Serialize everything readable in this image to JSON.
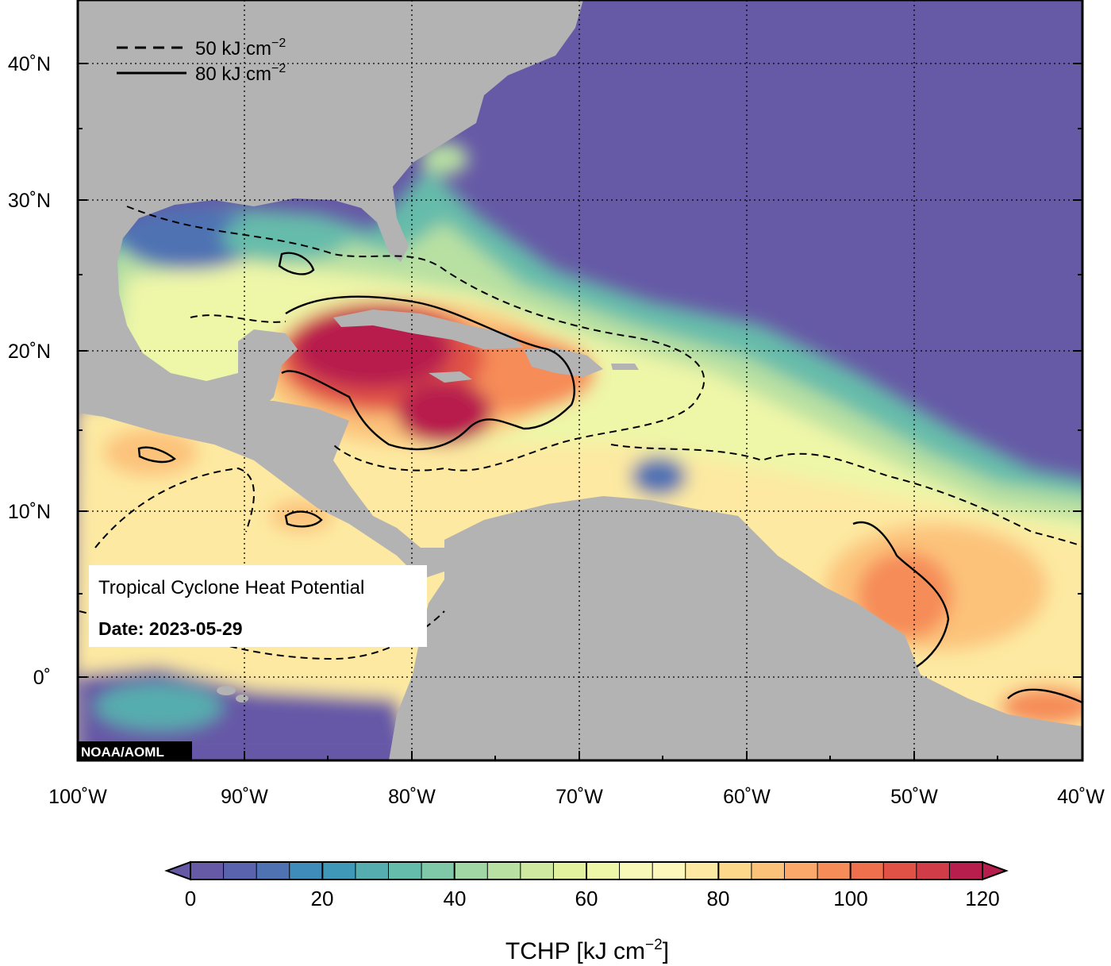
{
  "map": {
    "lat_labels": [
      "40˚N",
      "30˚N",
      "20˚N",
      "10˚N",
      "0˚"
    ],
    "lon_labels": [
      "100˚W",
      "90˚W",
      "80˚W",
      "70˚W",
      "60˚W",
      "50˚W",
      "40˚W"
    ],
    "title": "Tropical Cyclone Heat Potential",
    "date_label": "Date: 2023-05-29",
    "credit": "NOAA/AOML",
    "land_color": "#b3b3b3",
    "ocean_low_color": "#6659a6"
  },
  "legend": {
    "items": [
      {
        "value": "50 kJ cm",
        "sup": "−2",
        "style": "dashed"
      },
      {
        "value": "80 kJ cm",
        "sup": "−2",
        "style": "solid"
      }
    ]
  },
  "colorbar": {
    "ticks": [
      "0",
      "20",
      "40",
      "60",
      "80",
      "100",
      "120"
    ],
    "label_main": "TCHP [kJ cm",
    "label_sup": "−2",
    "label_end": "]",
    "min": 0,
    "max": 120,
    "step": 5,
    "colors": [
      "#6659a6",
      "#5a63ad",
      "#4f72b3",
      "#3f8cba",
      "#3f98b8",
      "#56adaf",
      "#66bcaa",
      "#7fc9a8",
      "#a0d7a4",
      "#b8e0a2",
      "#cfe9a0",
      "#e2f19d",
      "#eef6a8",
      "#f8f9b8",
      "#fef7bb",
      "#fde9a1",
      "#fdd88a",
      "#fcc27a",
      "#fba86a",
      "#f68c58",
      "#ef704c",
      "#e15246",
      "#d03c48",
      "#b71e4d"
    ]
  }
}
